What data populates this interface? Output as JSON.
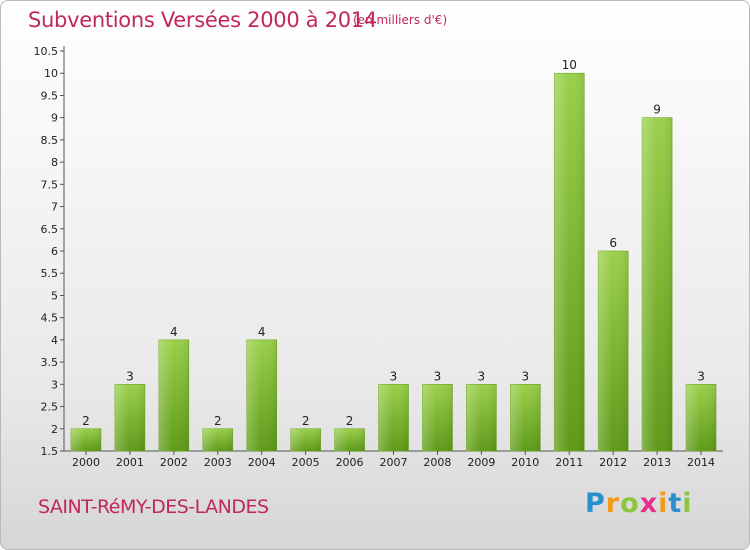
{
  "title": "Subventions Versées 2000 à 2014",
  "unit_note": "(en milliers d'€)",
  "commune": "SAINT-RéMY-DES-LANDES",
  "logo": {
    "text": "Proxiti",
    "letters": [
      {
        "ch": "P",
        "color": "#2a8fd0"
      },
      {
        "ch": "r",
        "color": "#f39a1c"
      },
      {
        "ch": "o",
        "color": "#8cc63f"
      },
      {
        "ch": "x",
        "color": "#e8308a"
      },
      {
        "ch": "i",
        "color": "#f39a1c"
      },
      {
        "ch": "t",
        "color": "#2a8fd0"
      },
      {
        "ch": "i",
        "color": "#8cc63f"
      }
    ]
  },
  "chart_data": {
    "type": "bar",
    "categories": [
      "2000",
      "2001",
      "2002",
      "2003",
      "2004",
      "2005",
      "2006",
      "2007",
      "2008",
      "2009",
      "2010",
      "2011",
      "2012",
      "2013",
      "2014"
    ],
    "values": [
      2,
      3,
      4,
      2,
      4,
      2,
      2,
      3,
      3,
      3,
      3,
      10,
      6,
      9,
      3
    ],
    "data_labels": [
      "2",
      "3",
      "4",
      "2",
      "4",
      "2",
      "2",
      "3",
      "3",
      "3",
      "3",
      "10",
      "6",
      "9",
      "3"
    ],
    "ylim": [
      1.5,
      10.5
    ],
    "yticks": [
      1.5,
      2,
      2.5,
      3,
      3.5,
      4,
      4.5,
      5,
      5.5,
      6,
      6.5,
      7,
      7.5,
      8,
      8.5,
      9,
      9.5,
      10,
      10.5
    ],
    "ytick_labels": [
      "1.5",
      "2",
      "2.5",
      "3",
      "3.5",
      "4",
      "4.5",
      "5",
      "5.5",
      "6",
      "6.5",
      "7",
      "7.5",
      "8",
      "8.5",
      "9",
      "9.5",
      "10",
      "10.5"
    ],
    "xlabel": "",
    "ylabel": "",
    "grid": false,
    "bar_color": "#7ab52e",
    "accent_color": "#c0285a"
  }
}
